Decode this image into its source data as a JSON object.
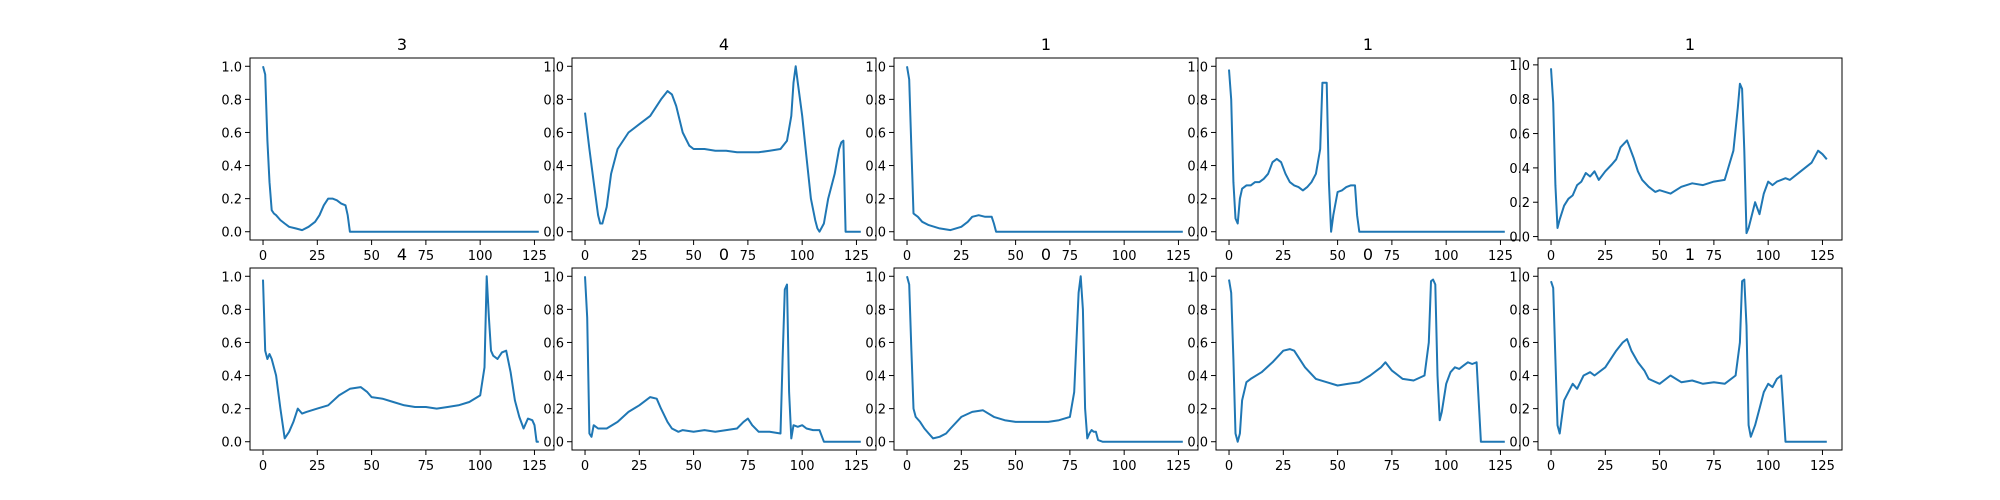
{
  "figure": {
    "line_color": "#1f77b4",
    "grid": false,
    "layout": "2 rows x 5 columns"
  },
  "chart_data": [
    {
      "type": "line",
      "title": "3",
      "xlabel": "",
      "ylabel": "",
      "xlim": [
        -6,
        134
      ],
      "ylim": [
        -0.05,
        1.05
      ],
      "xticks": [
        0,
        25,
        50,
        75,
        100,
        125
      ],
      "yticks": [
        0.0,
        0.2,
        0.4,
        0.6,
        0.8,
        1.0
      ],
      "x": [
        0,
        1,
        2,
        3,
        4,
        5,
        6,
        8,
        10,
        12,
        15,
        18,
        21,
        24,
        26,
        28,
        30,
        32,
        34,
        36,
        38,
        39,
        40,
        45,
        127
      ],
      "series": [
        {
          "values": [
            1.0,
            0.95,
            0.55,
            0.3,
            0.13,
            0.11,
            0.1,
            0.07,
            0.05,
            0.03,
            0.02,
            0.01,
            0.03,
            0.06,
            0.1,
            0.16,
            0.2,
            0.2,
            0.19,
            0.17,
            0.16,
            0.1,
            0.0,
            0.0,
            0.0
          ]
        }
      ]
    },
    {
      "type": "line",
      "title": "4",
      "xlabel": "",
      "ylabel": "",
      "xlim": [
        -6,
        134
      ],
      "ylim": [
        -0.05,
        1.05
      ],
      "xticks": [
        0,
        25,
        50,
        75,
        100,
        125
      ],
      "yticks": [
        0.0,
        0.2,
        0.4,
        0.6,
        0.8,
        1.0
      ],
      "x": [
        0,
        2,
        4,
        6,
        7,
        8,
        10,
        12,
        15,
        20,
        25,
        30,
        35,
        38,
        40,
        42,
        45,
        48,
        50,
        55,
        60,
        65,
        70,
        75,
        80,
        85,
        90,
        93,
        95,
        96,
        97,
        98,
        100,
        102,
        104,
        106,
        107,
        108,
        110,
        112,
        115,
        117,
        118,
        119,
        120,
        121,
        125,
        127
      ],
      "series": [
        {
          "values": [
            0.72,
            0.5,
            0.3,
            0.1,
            0.05,
            0.05,
            0.15,
            0.35,
            0.5,
            0.6,
            0.65,
            0.7,
            0.8,
            0.85,
            0.83,
            0.76,
            0.6,
            0.52,
            0.5,
            0.5,
            0.49,
            0.49,
            0.48,
            0.48,
            0.48,
            0.49,
            0.5,
            0.55,
            0.7,
            0.9,
            1.0,
            0.9,
            0.7,
            0.45,
            0.2,
            0.07,
            0.02,
            0.0,
            0.05,
            0.2,
            0.35,
            0.5,
            0.54,
            0.55,
            0.0,
            0.0,
            0.0,
            0.0
          ]
        }
      ]
    },
    {
      "type": "line",
      "title": "1",
      "xlabel": "",
      "ylabel": "",
      "xlim": [
        -6,
        134
      ],
      "ylim": [
        -0.05,
        1.05
      ],
      "xticks": [
        0,
        25,
        50,
        75,
        100,
        125
      ],
      "yticks": [
        0.0,
        0.2,
        0.4,
        0.6,
        0.8,
        1.0
      ],
      "x": [
        0,
        1,
        2,
        3,
        4,
        5,
        7,
        10,
        15,
        20,
        25,
        28,
        30,
        33,
        36,
        39,
        40,
        41,
        45,
        127
      ],
      "series": [
        {
          "values": [
            1.0,
            0.92,
            0.5,
            0.11,
            0.1,
            0.09,
            0.06,
            0.04,
            0.02,
            0.01,
            0.03,
            0.06,
            0.09,
            0.1,
            0.09,
            0.09,
            0.05,
            0.0,
            0.0,
            0.0
          ]
        }
      ]
    },
    {
      "type": "line",
      "title": "1",
      "xlabel": "",
      "ylabel": "",
      "xlim": [
        -6,
        134
      ],
      "ylim": [
        -0.05,
        1.05
      ],
      "xticks": [
        0,
        25,
        50,
        75,
        100,
        125
      ],
      "yticks": [
        0.0,
        0.2,
        0.4,
        0.6,
        0.8,
        1.0
      ],
      "x": [
        0,
        1,
        2,
        3,
        4,
        5,
        6,
        8,
        10,
        12,
        14,
        16,
        18,
        20,
        22,
        24,
        26,
        28,
        30,
        32,
        34,
        36,
        38,
        40,
        42,
        43,
        44,
        45,
        46,
        47,
        48,
        50,
        52,
        54,
        56,
        58,
        59,
        60,
        62,
        127
      ],
      "series": [
        {
          "values": [
            0.98,
            0.8,
            0.3,
            0.08,
            0.05,
            0.2,
            0.26,
            0.28,
            0.28,
            0.3,
            0.3,
            0.32,
            0.35,
            0.42,
            0.44,
            0.42,
            0.35,
            0.3,
            0.28,
            0.27,
            0.25,
            0.27,
            0.3,
            0.35,
            0.5,
            0.9,
            0.9,
            0.9,
            0.3,
            0.0,
            0.1,
            0.24,
            0.25,
            0.27,
            0.28,
            0.28,
            0.1,
            0.0,
            0.0,
            0.0
          ]
        }
      ]
    },
    {
      "type": "line",
      "title": "1",
      "xlabel": "",
      "ylabel": "",
      "xlim": [
        -6,
        134
      ],
      "ylim": [
        -0.02,
        1.04
      ],
      "xticks": [
        0,
        25,
        50,
        75,
        100,
        125
      ],
      "yticks": [
        0.0,
        0.2,
        0.4,
        0.6,
        0.8,
        1.0
      ],
      "x": [
        0,
        1,
        2,
        3,
        4,
        6,
        8,
        10,
        12,
        14,
        16,
        18,
        20,
        22,
        25,
        28,
        30,
        32,
        35,
        38,
        40,
        42,
        45,
        48,
        50,
        55,
        60,
        65,
        70,
        75,
        80,
        84,
        86,
        87,
        88,
        89,
        90,
        91,
        92,
        94,
        96,
        98,
        100,
        102,
        104,
        106,
        108,
        110,
        115,
        120,
        123,
        125,
        127
      ],
      "series": [
        {
          "values": [
            0.98,
            0.78,
            0.3,
            0.05,
            0.1,
            0.18,
            0.22,
            0.24,
            0.3,
            0.32,
            0.37,
            0.35,
            0.38,
            0.33,
            0.38,
            0.42,
            0.45,
            0.52,
            0.56,
            0.46,
            0.38,
            0.33,
            0.29,
            0.26,
            0.27,
            0.25,
            0.29,
            0.31,
            0.3,
            0.32,
            0.33,
            0.5,
            0.75,
            0.89,
            0.86,
            0.5,
            0.02,
            0.05,
            0.1,
            0.2,
            0.13,
            0.25,
            0.32,
            0.3,
            0.32,
            0.33,
            0.34,
            0.33,
            0.38,
            0.43,
            0.5,
            0.48,
            0.45
          ]
        }
      ]
    },
    {
      "type": "line",
      "title": "4",
      "xlabel": "",
      "ylabel": "",
      "xlim": [
        -6,
        134
      ],
      "ylim": [
        -0.05,
        1.05
      ],
      "xticks": [
        0,
        25,
        50,
        75,
        100,
        125
      ],
      "yticks": [
        0.0,
        0.2,
        0.4,
        0.6,
        0.8,
        1.0
      ],
      "x": [
        0,
        1,
        2,
        3,
        4,
        6,
        8,
        10,
        12,
        14,
        16,
        18,
        20,
        25,
        30,
        35,
        40,
        45,
        48,
        50,
        55,
        60,
        65,
        70,
        75,
        80,
        85,
        90,
        95,
        100,
        102,
        103,
        104,
        105,
        106,
        108,
        110,
        112,
        114,
        116,
        118,
        120,
        122,
        124,
        125,
        126,
        127
      ],
      "series": [
        {
          "values": [
            0.98,
            0.55,
            0.5,
            0.53,
            0.5,
            0.4,
            0.2,
            0.02,
            0.06,
            0.12,
            0.2,
            0.17,
            0.18,
            0.2,
            0.22,
            0.28,
            0.32,
            0.33,
            0.3,
            0.27,
            0.26,
            0.24,
            0.22,
            0.21,
            0.21,
            0.2,
            0.21,
            0.22,
            0.24,
            0.28,
            0.45,
            1.0,
            0.75,
            0.55,
            0.52,
            0.5,
            0.54,
            0.55,
            0.42,
            0.25,
            0.15,
            0.08,
            0.14,
            0.13,
            0.1,
            0.0,
            0.0
          ]
        }
      ]
    },
    {
      "type": "line",
      "title": "0",
      "xlabel": "",
      "ylabel": "",
      "xlim": [
        -6,
        134
      ],
      "ylim": [
        -0.05,
        1.05
      ],
      "xticks": [
        0,
        25,
        50,
        75,
        100,
        125
      ],
      "yticks": [
        0.0,
        0.2,
        0.4,
        0.6,
        0.8,
        1.0
      ],
      "x": [
        0,
        1,
        2,
        3,
        4,
        6,
        8,
        10,
        15,
        20,
        25,
        30,
        33,
        35,
        38,
        40,
        43,
        45,
        50,
        55,
        60,
        65,
        70,
        73,
        75,
        77,
        80,
        85,
        90,
        91,
        92,
        93,
        94,
        95,
        96,
        98,
        100,
        102,
        105,
        108,
        110,
        127
      ],
      "series": [
        {
          "values": [
            1.0,
            0.75,
            0.05,
            0.03,
            0.1,
            0.08,
            0.08,
            0.08,
            0.12,
            0.18,
            0.22,
            0.27,
            0.26,
            0.2,
            0.12,
            0.08,
            0.06,
            0.07,
            0.06,
            0.07,
            0.06,
            0.07,
            0.08,
            0.12,
            0.14,
            0.1,
            0.06,
            0.06,
            0.05,
            0.5,
            0.92,
            0.95,
            0.3,
            0.02,
            0.1,
            0.09,
            0.1,
            0.08,
            0.07,
            0.07,
            0.0,
            0.0
          ]
        }
      ]
    },
    {
      "type": "line",
      "title": "0",
      "xlabel": "",
      "ylabel": "",
      "xlim": [
        -6,
        134
      ],
      "ylim": [
        -0.05,
        1.05
      ],
      "xticks": [
        0,
        25,
        50,
        75,
        100,
        125
      ],
      "yticks": [
        0.0,
        0.2,
        0.4,
        0.6,
        0.8,
        1.0
      ],
      "x": [
        0,
        1,
        2,
        3,
        4,
        6,
        8,
        10,
        12,
        15,
        18,
        20,
        25,
        30,
        35,
        40,
        45,
        50,
        55,
        60,
        65,
        70,
        75,
        77,
        78,
        79,
        80,
        81,
        82,
        83,
        84,
        85,
        86,
        87,
        88,
        90,
        127
      ],
      "series": [
        {
          "values": [
            1.0,
            0.95,
            0.55,
            0.2,
            0.15,
            0.12,
            0.08,
            0.05,
            0.02,
            0.03,
            0.05,
            0.08,
            0.15,
            0.18,
            0.19,
            0.15,
            0.13,
            0.12,
            0.12,
            0.12,
            0.12,
            0.13,
            0.15,
            0.3,
            0.6,
            0.9,
            1.0,
            0.8,
            0.2,
            0.02,
            0.05,
            0.07,
            0.06,
            0.06,
            0.01,
            0.0,
            0.0
          ]
        }
      ]
    },
    {
      "type": "line",
      "title": "0",
      "xlabel": "",
      "ylabel": "",
      "xlim": [
        -6,
        134
      ],
      "ylim": [
        -0.05,
        1.05
      ],
      "xticks": [
        0,
        25,
        50,
        75,
        100,
        125
      ],
      "yticks": [
        0.0,
        0.2,
        0.4,
        0.6,
        0.8,
        1.0
      ],
      "x": [
        0,
        1,
        2,
        3,
        4,
        5,
        6,
        8,
        10,
        15,
        20,
        25,
        28,
        30,
        35,
        40,
        45,
        50,
        55,
        60,
        65,
        70,
        72,
        75,
        80,
        85,
        90,
        92,
        93,
        94,
        95,
        96,
        97,
        98,
        100,
        102,
        104,
        106,
        108,
        110,
        112,
        114,
        116,
        120,
        127
      ],
      "series": [
        {
          "values": [
            0.98,
            0.9,
            0.5,
            0.05,
            0.0,
            0.05,
            0.25,
            0.36,
            0.38,
            0.42,
            0.48,
            0.55,
            0.56,
            0.55,
            0.45,
            0.38,
            0.36,
            0.34,
            0.35,
            0.36,
            0.4,
            0.45,
            0.48,
            0.43,
            0.38,
            0.37,
            0.4,
            0.6,
            0.97,
            0.98,
            0.95,
            0.4,
            0.13,
            0.18,
            0.35,
            0.42,
            0.45,
            0.44,
            0.46,
            0.48,
            0.47,
            0.48,
            0.0,
            0.0,
            0.0
          ]
        }
      ]
    },
    {
      "type": "line",
      "title": "1",
      "xlabel": "",
      "ylabel": "",
      "xlim": [
        -6,
        134
      ],
      "ylim": [
        -0.05,
        1.05
      ],
      "xticks": [
        0,
        25,
        50,
        75,
        100,
        125
      ],
      "yticks": [
        0.0,
        0.2,
        0.4,
        0.6,
        0.8,
        1.0
      ],
      "x": [
        0,
        1,
        2,
        3,
        4,
        5,
        6,
        8,
        10,
        12,
        15,
        18,
        20,
        25,
        30,
        33,
        35,
        37,
        40,
        43,
        45,
        50,
        55,
        60,
        65,
        70,
        75,
        80,
        85,
        87,
        88,
        89,
        90,
        91,
        92,
        94,
        96,
        98,
        100,
        102,
        104,
        106,
        108,
        110,
        127
      ],
      "series": [
        {
          "values": [
            0.97,
            0.93,
            0.5,
            0.1,
            0.05,
            0.15,
            0.25,
            0.3,
            0.35,
            0.32,
            0.4,
            0.42,
            0.4,
            0.45,
            0.55,
            0.6,
            0.62,
            0.55,
            0.48,
            0.43,
            0.38,
            0.35,
            0.4,
            0.36,
            0.37,
            0.35,
            0.36,
            0.35,
            0.4,
            0.6,
            0.97,
            0.98,
            0.7,
            0.1,
            0.03,
            0.1,
            0.2,
            0.3,
            0.35,
            0.33,
            0.38,
            0.4,
            0.0,
            0.0,
            0.0
          ]
        }
      ]
    }
  ]
}
